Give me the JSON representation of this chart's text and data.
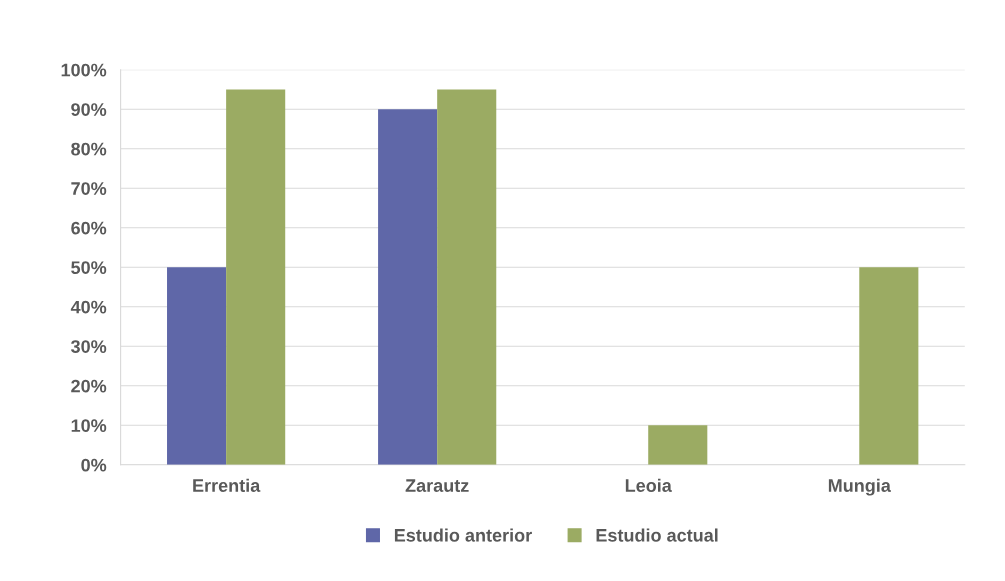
{
  "chart_data": {
    "type": "bar",
    "categories": [
      "Errentia",
      "Zarautz",
      "Leoia",
      "Mungia"
    ],
    "series": [
      {
        "name": "Estudio anterior",
        "color": "#5f67a8",
        "values": [
          50,
          90,
          0,
          0
        ]
      },
      {
        "name": "Estudio actual",
        "color": "#9bab63",
        "values": [
          95,
          95,
          10,
          50
        ]
      }
    ],
    "ylim": [
      0,
      100
    ],
    "yticks": [
      {
        "value": 0,
        "label": "0%"
      },
      {
        "value": 10,
        "label": "10%"
      },
      {
        "value": 20,
        "label": "20%"
      },
      {
        "value": 30,
        "label": "30%"
      },
      {
        "value": 40,
        "label": "40%"
      },
      {
        "value": 50,
        "label": "50%"
      },
      {
        "value": 60,
        "label": "60%"
      },
      {
        "value": 70,
        "label": "70%"
      },
      {
        "value": 80,
        "label": "80%"
      },
      {
        "value": 90,
        "label": "90%"
      },
      {
        "value": 100,
        "label": "100%"
      }
    ],
    "grid": "y",
    "legend": "bottom"
  }
}
